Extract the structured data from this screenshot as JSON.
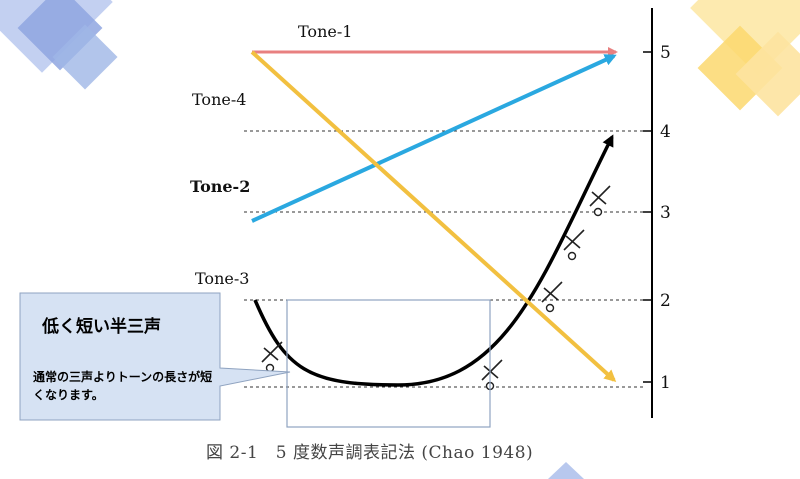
{
  "tones": [
    {
      "label": "Tone-1",
      "from": 5,
      "to": 5,
      "color": "#e88080"
    },
    {
      "label": "Tone-2",
      "from": 3,
      "to": 5,
      "color": "#2aa8e0"
    },
    {
      "label": "Tone-3",
      "from": 2,
      "to": 4,
      "dip": 1,
      "color": "#000000"
    },
    {
      "label": "Tone-4",
      "from": 5,
      "to": 1,
      "color": "#f2c040"
    }
  ],
  "scale": {
    "min": 1,
    "max": 5,
    "ticks": [
      "1",
      "2",
      "3",
      "4",
      "5"
    ]
  },
  "callout": {
    "title": "低く短い半三声",
    "body": "通常の三声よりトーンの長さが短くなります。"
  },
  "caption": "図 2-1　5 度数声調表記法 (Chao 1948)",
  "colors": {
    "callout_fill": "#d6e2f3",
    "callout_border": "#8fa3c0",
    "deco_blue": "#9fb6e6",
    "deco_yellow": "#fde8a6"
  }
}
